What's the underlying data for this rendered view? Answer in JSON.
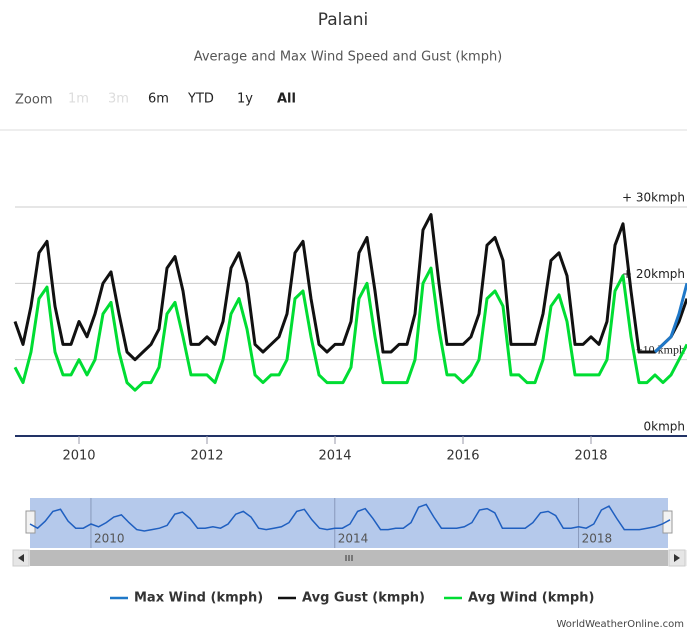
{
  "chart_data": {
    "type": "line",
    "title": "Palani",
    "subtitle": "Average and Max Wind Speed and Gust (kmph)",
    "range_selector": {
      "label": "Zoom",
      "buttons": [
        {
          "text": "1m",
          "enabled": false
        },
        {
          "text": "3m",
          "enabled": false
        },
        {
          "text": "6m",
          "enabled": true
        },
        {
          "text": "YTD",
          "enabled": true
        },
        {
          "text": "1y",
          "enabled": true
        },
        {
          "text": "All",
          "enabled": true,
          "selected": true
        }
      ]
    },
    "x": [
      2009,
      2009.125,
      2009.25,
      2009.375,
      2009.5,
      2009.625,
      2009.75,
      2009.875,
      2010,
      2010.125,
      2010.25,
      2010.375,
      2010.5,
      2010.625,
      2010.75,
      2010.875,
      2011,
      2011.125,
      2011.25,
      2011.375,
      2011.5,
      2011.625,
      2011.75,
      2011.875,
      2012,
      2012.125,
      2012.25,
      2012.375,
      2012.5,
      2012.625,
      2012.75,
      2012.875,
      2013,
      2013.125,
      2013.25,
      2013.375,
      2013.5,
      2013.625,
      2013.75,
      2013.875,
      2014,
      2014.125,
      2014.25,
      2014.375,
      2014.5,
      2014.625,
      2014.75,
      2014.875,
      2015,
      2015.125,
      2015.25,
      2015.375,
      2015.5,
      2015.625,
      2015.75,
      2015.875,
      2016,
      2016.125,
      2016.25,
      2016.375,
      2016.5,
      2016.625,
      2016.75,
      2016.875,
      2017,
      2017.125,
      2017.25,
      2017.375,
      2017.5,
      2017.625,
      2017.75,
      2017.875,
      2018,
      2018.125,
      2018.25,
      2018.375,
      2018.5,
      2018.625,
      2018.75,
      2018.875,
      2019,
      2019.125,
      2019.25,
      2019.375,
      2019.5
    ],
    "series": [
      {
        "name": "Max Wind (kmph)",
        "color": "#1f78c8",
        "values": [
          null,
          null,
          null,
          null,
          null,
          null,
          null,
          null,
          null,
          null,
          null,
          null,
          null,
          null,
          null,
          null,
          null,
          null,
          null,
          null,
          null,
          null,
          null,
          null,
          null,
          null,
          null,
          null,
          null,
          null,
          null,
          null,
          null,
          null,
          null,
          null,
          null,
          null,
          null,
          null,
          null,
          null,
          null,
          null,
          null,
          null,
          null,
          null,
          null,
          null,
          null,
          null,
          null,
          null,
          null,
          null,
          null,
          null,
          null,
          null,
          null,
          null,
          null,
          null,
          null,
          null,
          null,
          null,
          null,
          null,
          null,
          null,
          null,
          null,
          null,
          null,
          null,
          null,
          null,
          null,
          11,
          12,
          13,
          16,
          20
        ]
      },
      {
        "name": "Avg Gust (kmph)",
        "color": "#111111",
        "values": [
          15,
          12,
          17,
          24,
          25.5,
          17,
          12,
          12,
          15,
          13,
          16,
          20,
          21.5,
          16,
          11,
          10,
          11,
          12,
          14,
          22,
          23.5,
          19,
          12,
          12,
          13,
          12,
          15,
          22,
          24,
          20,
          12,
          11,
          12,
          13,
          16,
          24,
          25.5,
          18,
          12,
          11,
          12,
          12,
          15,
          24,
          26,
          19,
          11,
          11,
          12,
          12,
          16,
          27,
          29,
          20,
          12,
          12,
          12,
          13,
          16,
          25,
          26,
          23,
          12,
          12,
          12,
          12,
          16,
          23,
          24,
          21,
          12,
          12,
          13,
          12,
          15,
          25,
          27.8,
          19,
          11,
          11,
          11,
          12,
          13,
          15,
          18
        ]
      },
      {
        "name": "Avg Wind (kmph)",
        "color": "#00dd33",
        "values": [
          9,
          7,
          11,
          18,
          19.5,
          11,
          8,
          8,
          10,
          8,
          10,
          16,
          17.5,
          11,
          7,
          6,
          7,
          7,
          9,
          16,
          17.5,
          13,
          8,
          8,
          8,
          7,
          10,
          16,
          18,
          14,
          8,
          7,
          8,
          8,
          10,
          18,
          19,
          13,
          8,
          7,
          7,
          7,
          9,
          18,
          20,
          13,
          7,
          7,
          7,
          7,
          10,
          20,
          22,
          14,
          8,
          8,
          7,
          8,
          10,
          18,
          19,
          17,
          8,
          8,
          7,
          7,
          10,
          17,
          18.5,
          15,
          8,
          8,
          8,
          8,
          10,
          19,
          21,
          13,
          7,
          7,
          8,
          7,
          8,
          10,
          12
        ]
      }
    ],
    "xlim": [
      2009,
      2019.5
    ],
    "xticks": [
      2010,
      2012,
      2014,
      2016,
      2018
    ],
    "ylim": [
      0,
      30
    ],
    "yticks": [
      {
        "value": 0,
        "label": "0kmph"
      },
      {
        "value": 10,
        "label": "+10 kmph"
      },
      {
        "value": 20,
        "label": "+ 20kmph"
      },
      {
        "value": 30,
        "label": "+ 30kmph"
      }
    ],
    "grid": true,
    "navigator": {
      "series": 1,
      "xticks": [
        2010,
        2014,
        2018
      ]
    },
    "credit": "WorldWeatherOnline.com"
  }
}
